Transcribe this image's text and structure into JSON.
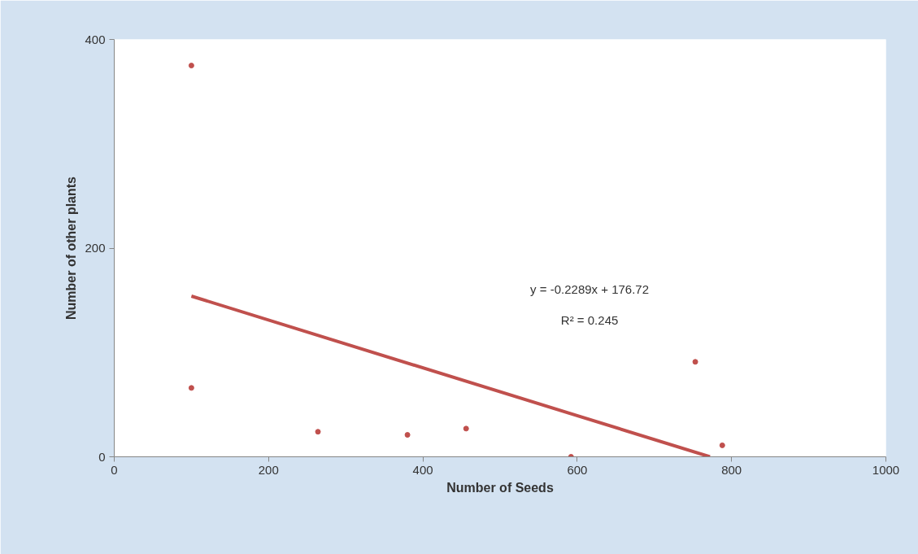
{
  "chart_data": {
    "type": "scatter",
    "xlabel": "Number of Seeds",
    "ylabel": "Number of other plants",
    "xlim": [
      0,
      1000
    ],
    "xticks": [
      0,
      200,
      400,
      600,
      800,
      1000
    ],
    "ylim": [
      0,
      400
    ],
    "yticks": [
      0,
      200,
      400
    ],
    "grid": false,
    "series": [
      {
        "marker": "circle",
        "color": "#c0504d",
        "x": [
          100,
          100,
          264,
          380,
          456,
          592,
          753,
          788
        ],
        "values": [
          375,
          66,
          24,
          21,
          27,
          0,
          91,
          11
        ]
      },
      {
        "type": "line",
        "color": "#c0504d",
        "x": [
          100,
          772
        ],
        "values": [
          154,
          0
        ]
      }
    ],
    "annotations": [
      "y = -0.2289x + 176.72",
      "R² = 0.245"
    ]
  }
}
